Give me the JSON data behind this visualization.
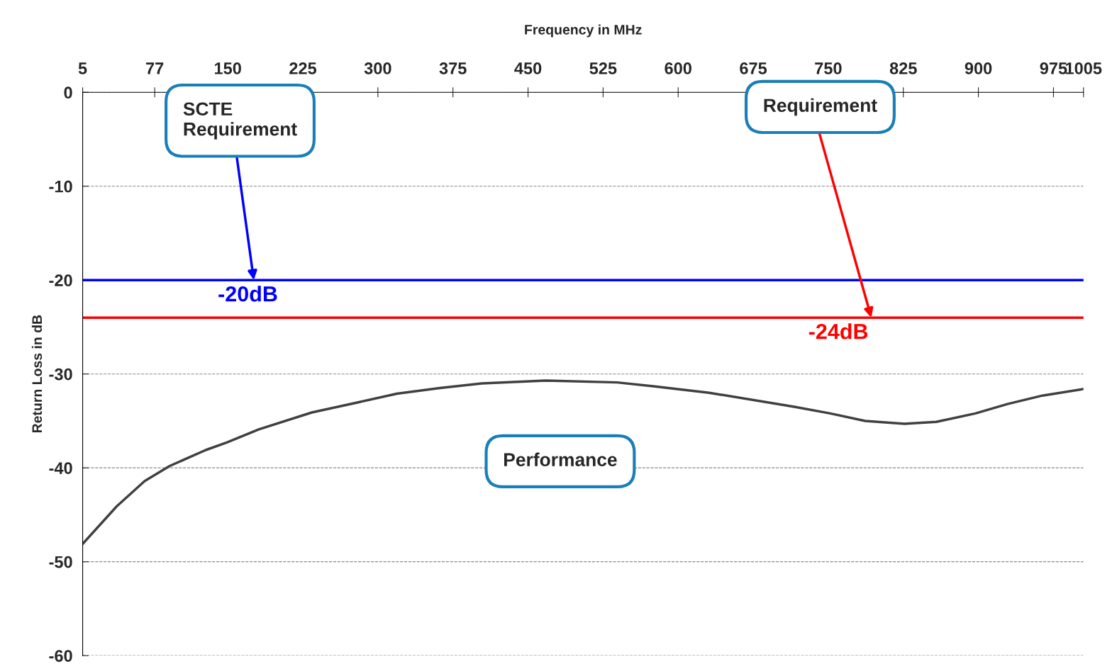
{
  "chart_data": {
    "type": "line",
    "xlabel": "Frequency in MHz",
    "ylabel": "Return Loss in dB",
    "xlim": [
      5,
      1005
    ],
    "xticks": [
      5,
      77,
      150,
      225,
      300,
      375,
      450,
      525,
      600,
      675,
      750,
      825,
      900,
      975,
      1005
    ],
    "ylim": [
      -60,
      0
    ],
    "yticks": [
      -60,
      -50,
      -40,
      -30,
      -20,
      -10,
      0
    ],
    "grid": "y",
    "marker": "none",
    "line_style": "solid",
    "series": [
      {
        "color": "#404040",
        "x": [
          5,
          39,
          67,
          92,
          128,
          149,
          181,
          234,
          277,
          319,
          362,
          404,
          468,
          539,
          575,
          631,
          716,
          752,
          787,
          826,
          858,
          897,
          929,
          964,
          1005
        ],
        "values": [
          -48.1,
          -44.1,
          -41.4,
          -39.8,
          -38.1,
          -37.3,
          -35.9,
          -34.1,
          -33.1,
          -32.1,
          -31.5,
          -31.0,
          -30.7,
          -30.9,
          -31.3,
          -32.0,
          -33.5,
          -34.2,
          -35.0,
          -35.3,
          -35.1,
          -34.2,
          -33.2,
          -32.3,
          -31.6
        ]
      }
    ],
    "ref_lines": [
      {
        "axis": "y",
        "value": -20,
        "label": "-20dB",
        "color": "#0000ff"
      },
      {
        "axis": "y",
        "value": -24,
        "label": "-24dB",
        "color": "#ff0000"
      }
    ],
    "annotations": [
      {
        "text": "SCTE\nRequirement",
        "x": 176,
        "y": -20
      },
      {
        "text": "Requirement",
        "x": 793,
        "y": -24
      },
      "Performance"
    ]
  }
}
